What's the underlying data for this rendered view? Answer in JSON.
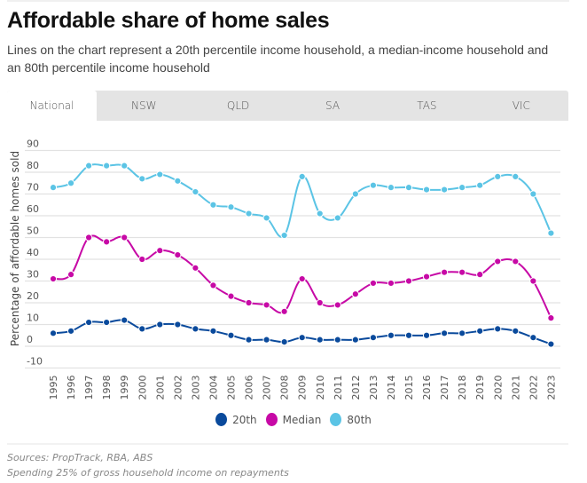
{
  "header": {
    "title": "Affordable share of home sales",
    "subtitle": "Lines on the chart represent a 20th percentile income household, a median-income household and an 80th percentile income household"
  },
  "tabs": [
    {
      "label": "National",
      "active": true
    },
    {
      "label": "NSW",
      "active": false
    },
    {
      "label": "QLD",
      "active": false
    },
    {
      "label": "SA",
      "active": false
    },
    {
      "label": "TAS",
      "active": false
    },
    {
      "label": "VIC",
      "active": false
    }
  ],
  "footer": {
    "sources": "Sources: PropTrack, RBA, ABS",
    "note": "Spending 25% of gross household income on repayments"
  },
  "chart_data": {
    "type": "line",
    "title": "Affordable share of home sales",
    "xlabel": "",
    "ylabel": "Percentage of affordable homes sold",
    "ylim": [
      -10,
      90
    ],
    "yticks": [
      90,
      80,
      70,
      60,
      50,
      40,
      30,
      20,
      10,
      0,
      -10
    ],
    "grid": true,
    "legend_position": "bottom-center",
    "x": [
      "1995",
      "1996",
      "1997",
      "1998",
      "1999",
      "2000",
      "2001",
      "2002",
      "2003",
      "2004",
      "2005",
      "2006",
      "2007",
      "2008",
      "2009",
      "2010",
      "2011",
      "2012",
      "2013",
      "2014",
      "2015",
      "2016",
      "2017",
      "2018",
      "2019",
      "2020",
      "2021",
      "2022",
      "2023"
    ],
    "series": [
      {
        "name": "20th",
        "color": "#0a4a9c",
        "values": [
          6,
          7,
          11,
          11,
          12,
          8,
          10,
          10,
          8,
          7,
          5,
          3,
          3,
          2,
          4,
          3,
          3,
          3,
          4,
          5,
          5,
          5,
          6,
          6,
          7,
          8,
          7,
          4,
          1
        ]
      },
      {
        "name": "Median",
        "color": "#c709a6",
        "values": [
          31,
          33,
          50,
          48,
          50,
          40,
          44,
          42,
          36,
          28,
          23,
          20,
          19,
          16,
          31,
          20,
          19,
          24,
          29,
          29,
          30,
          32,
          34,
          34,
          33,
          39,
          39,
          30,
          13
        ]
      },
      {
        "name": "80th",
        "color": "#5bc4e5",
        "values": [
          73,
          75,
          83,
          83,
          83,
          77,
          79,
          76,
          71,
          65,
          64,
          61,
          59,
          51,
          78,
          61,
          59,
          70,
          74,
          73,
          73,
          72,
          72,
          73,
          74,
          78,
          78,
          70,
          52
        ]
      }
    ]
  }
}
